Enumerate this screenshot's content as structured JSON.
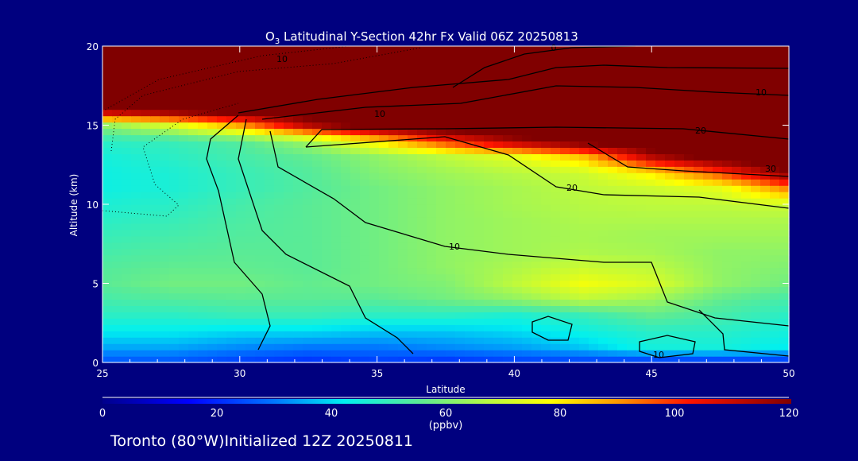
{
  "chart_data": {
    "type": "heatmap",
    "title_main": "O",
    "title_sub": "3",
    "title_rest": " Latitudinal Y-Section 42hr  Fx Valid 06Z 20250813",
    "xlabel": "Latitude",
    "ylabel": "Altitude (km)",
    "xlim": [
      25,
      50
    ],
    "ylim": [
      0,
      20
    ],
    "xticks": [
      "25",
      "30",
      "35",
      "40",
      "45",
      "50"
    ],
    "yticks": [
      "0",
      "5",
      "10",
      "15",
      "20"
    ],
    "lat": [
      25,
      27.5,
      30,
      32.5,
      35,
      37.5,
      40,
      42.5,
      45,
      47.5,
      50
    ],
    "alt": [
      0,
      1,
      2,
      3,
      4,
      5,
      6,
      7,
      8,
      9,
      10,
      11,
      12,
      13,
      14,
      15,
      16,
      17,
      18,
      19,
      20
    ],
    "values": [
      [
        25,
        25,
        22,
        20,
        22,
        20,
        22,
        22,
        20,
        20,
        20
      ],
      [
        35,
        35,
        32,
        30,
        30,
        32,
        34,
        38,
        45,
        45,
        42
      ],
      [
        42,
        42,
        40,
        40,
        38,
        38,
        40,
        44,
        48,
        48,
        45
      ],
      [
        48,
        48,
        50,
        50,
        48,
        48,
        46,
        50,
        56,
        52,
        48
      ],
      [
        52,
        54,
        55,
        55,
        55,
        58,
        62,
        68,
        64,
        56,
        52
      ],
      [
        55,
        58,
        58,
        56,
        58,
        60,
        68,
        76,
        72,
        62,
        58
      ],
      [
        54,
        56,
        56,
        55,
        58,
        62,
        66,
        70,
        68,
        62,
        60
      ],
      [
        52,
        54,
        55,
        55,
        58,
        62,
        64,
        66,
        65,
        62,
        62
      ],
      [
        50,
        52,
        54,
        55,
        58,
        62,
        64,
        65,
        64,
        64,
        64
      ],
      [
        48,
        50,
        53,
        55,
        58,
        62,
        64,
        66,
        66,
        66,
        66
      ],
      [
        46,
        48,
        52,
        55,
        58,
        62,
        65,
        67,
        68,
        68,
        70
      ],
      [
        44,
        46,
        50,
        54,
        58,
        62,
        65,
        68,
        70,
        74,
        92
      ],
      [
        44,
        46,
        50,
        54,
        60,
        64,
        67,
        70,
        80,
        98,
        120
      ],
      [
        45,
        48,
        52,
        56,
        62,
        68,
        74,
        85,
        112,
        125,
        130
      ],
      [
        48,
        50,
        54,
        64,
        80,
        100,
        115,
        125,
        130,
        130,
        130
      ],
      [
        62,
        72,
        88,
        112,
        125,
        130,
        130,
        130,
        130,
        130,
        130
      ],
      [
        120,
        125,
        130,
        130,
        130,
        130,
        130,
        130,
        130,
        130,
        130
      ],
      [
        130,
        130,
        130,
        130,
        130,
        130,
        130,
        130,
        130,
        130,
        130
      ],
      [
        130,
        130,
        130,
        130,
        130,
        130,
        130,
        130,
        130,
        130,
        130
      ],
      [
        130,
        130,
        130,
        130,
        130,
        130,
        130,
        130,
        130,
        130,
        130
      ],
      [
        130,
        130,
        130,
        130,
        130,
        130,
        130,
        130,
        130,
        130,
        130
      ]
    ],
    "contour_labels": [
      "10",
      "0",
      "10",
      "10",
      "20",
      "20",
      "30",
      "10",
      "10"
    ],
    "colorbar": {
      "ticks": [
        "0",
        "20",
        "40",
        "60",
        "80",
        "100",
        "120"
      ],
      "range": [
        0,
        120
      ],
      "units": "(ppbv)"
    }
  },
  "footer": "Toronto (80°W)Initialized 12Z 20250811"
}
